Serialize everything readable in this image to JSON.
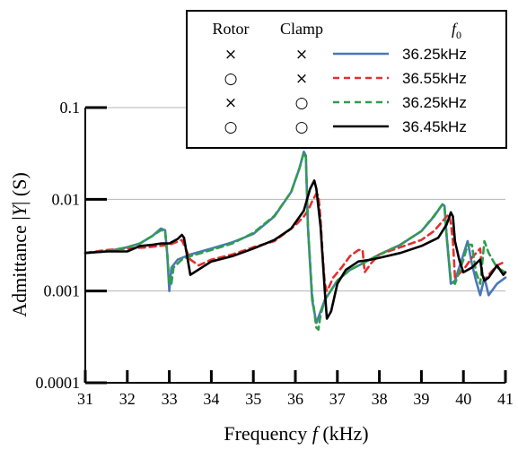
{
  "chart_data": {
    "type": "line",
    "xlabel": "Frequency f (kHz)",
    "xlabel_parts": [
      "Frequency ",
      "f",
      " (kHz)"
    ],
    "ylabel": "Admittance |Y| (S)",
    "ylabel_parts": [
      "Admittance |",
      "Y",
      "| (S)"
    ],
    "xlim": [
      31,
      41
    ],
    "ylim": [
      0.0001,
      0.1
    ],
    "yscale": "log",
    "grid": "horizontal",
    "x_ticks": [
      "31",
      "32",
      "33",
      "34",
      "35",
      "36",
      "37",
      "38",
      "39",
      "40",
      "41"
    ],
    "y_ticks": [
      "0.0001",
      "0.001",
      "0.01",
      "0.1"
    ],
    "legend": {
      "placement": "top-right",
      "headers": {
        "rotor": "Rotor",
        "clamp": "Clamp",
        "f0": "f",
        "f0_sub": "0"
      },
      "rows": [
        {
          "rotor": "×",
          "clamp": "×",
          "f0": "36.25kHz"
        },
        {
          "rotor": "○",
          "clamp": "×",
          "f0": "36.55kHz"
        },
        {
          "rotor": "×",
          "clamp": "○",
          "f0": "36.25kHz"
        },
        {
          "rotor": "○",
          "clamp": "○",
          "f0": "36.45kHz"
        }
      ]
    },
    "series": [
      {
        "color": "#4a78b8",
        "dash": "solid",
        "x": [
          31,
          31.5,
          32,
          32.3,
          32.6,
          32.8,
          32.9,
          32.95,
          33.0,
          33.05,
          33.2,
          33.5,
          34,
          34.5,
          35,
          35.5,
          35.9,
          36.1,
          36.2,
          36.25,
          36.3,
          36.4,
          36.5,
          36.6,
          36.7,
          37,
          37.3,
          37.6,
          38,
          38.5,
          39,
          39.3,
          39.5,
          39.55,
          39.6,
          39.7,
          39.8,
          40,
          40.1,
          40.2,
          40.3,
          40.4,
          40.5,
          40.6,
          40.8,
          41
        ],
        "y": [
          0.0026,
          0.0027,
          0.003,
          0.0033,
          0.004,
          0.0048,
          0.0046,
          0.0025,
          0.001,
          0.0018,
          0.0022,
          0.0025,
          0.0029,
          0.0034,
          0.0042,
          0.0065,
          0.012,
          0.022,
          0.033,
          0.03,
          0.005,
          0.0008,
          0.00045,
          0.0006,
          0.0008,
          0.0013,
          0.0017,
          0.002,
          0.0025,
          0.0032,
          0.0045,
          0.0065,
          0.0088,
          0.0085,
          0.004,
          0.0012,
          0.0013,
          0.0025,
          0.0035,
          0.002,
          0.0013,
          0.0009,
          0.0014,
          0.0009,
          0.0012,
          0.0014
        ]
      },
      {
        "color": "#e03030",
        "dash": "7,5",
        "x": [
          31,
          31.5,
          32,
          32.5,
          33.0,
          33.3,
          33.5,
          33.7,
          34,
          34.5,
          35,
          35.5,
          36,
          36.2,
          36.3,
          36.4,
          36.5,
          36.55,
          36.6,
          36.65,
          36.7,
          36.75,
          36.8,
          36.9,
          37.1,
          37.3,
          37.5,
          37.6,
          37.65,
          37.8,
          38,
          38.5,
          39,
          39.3,
          39.6,
          39.65,
          39.7,
          39.75,
          39.8,
          40,
          40.2,
          40.4,
          40.45,
          40.5,
          40.6,
          40.8,
          41
        ],
        "y": [
          0.0026,
          0.0028,
          0.0029,
          0.003,
          0.0032,
          0.0036,
          0.0022,
          0.0019,
          0.0022,
          0.0025,
          0.003,
          0.0035,
          0.0052,
          0.0065,
          0.0075,
          0.0095,
          0.0115,
          0.011,
          0.006,
          0.0025,
          0.0012,
          0.001,
          0.0011,
          0.0014,
          0.0018,
          0.0024,
          0.0028,
          0.0028,
          0.0016,
          0.002,
          0.0025,
          0.003,
          0.0036,
          0.0045,
          0.0065,
          0.0068,
          0.0055,
          0.0035,
          0.0014,
          0.0017,
          0.0023,
          0.0029,
          0.0015,
          0.0013,
          0.0015,
          0.0019,
          0.0021
        ]
      },
      {
        "color": "#2f9e4b",
        "dash": "7,5",
        "x": [
          31,
          31.5,
          32,
          32.3,
          32.6,
          32.8,
          32.9,
          32.95,
          33.0,
          33.05,
          33.1,
          33.3,
          33.5,
          34,
          34.5,
          35,
          35.5,
          35.9,
          36.1,
          36.2,
          36.25,
          36.3,
          36.4,
          36.5,
          36.55,
          36.6,
          36.7,
          37,
          37.3,
          37.6,
          38,
          38.5,
          39,
          39.3,
          39.5,
          39.55,
          39.6,
          39.7,
          39.8,
          40,
          40.1,
          40.2,
          40.3,
          40.4,
          40.5,
          40.6,
          40.8,
          41
        ],
        "y": [
          0.0026,
          0.0027,
          0.003,
          0.0033,
          0.004,
          0.0046,
          0.0045,
          0.0026,
          0.0012,
          0.0012,
          0.0018,
          0.0022,
          0.0024,
          0.0028,
          0.0033,
          0.0043,
          0.0066,
          0.012,
          0.022,
          0.032,
          0.029,
          0.005,
          0.0009,
          0.0004,
          0.00038,
          0.00055,
          0.0008,
          0.0013,
          0.0017,
          0.002,
          0.0025,
          0.0032,
          0.0045,
          0.0066,
          0.0088,
          0.0084,
          0.004,
          0.0013,
          0.0012,
          0.0022,
          0.0032,
          0.0032,
          0.0016,
          0.0012,
          0.0035,
          0.0026,
          0.0018,
          0.0016
        ]
      },
      {
        "color": "#000000",
        "dash": "solid",
        "x": [
          31,
          31.5,
          32,
          32.3,
          32.6,
          32.8,
          33.0,
          33.2,
          33.3,
          33.35,
          33.5,
          34,
          34.5,
          35,
          35.5,
          35.9,
          36.2,
          36.35,
          36.45,
          36.5,
          36.6,
          36.7,
          36.75,
          36.85,
          37,
          37.2,
          37.5,
          37.8,
          38,
          38.5,
          39,
          39.4,
          39.6,
          39.7,
          39.75,
          39.8,
          39.9,
          40,
          40.2,
          40.4,
          40.45,
          40.5,
          40.6,
          40.8,
          40.95,
          41
        ],
        "y": [
          0.0026,
          0.0027,
          0.0027,
          0.0031,
          0.0032,
          0.0033,
          0.0033,
          0.0037,
          0.0041,
          0.0038,
          0.0015,
          0.0021,
          0.0024,
          0.0029,
          0.0036,
          0.0048,
          0.0075,
          0.013,
          0.016,
          0.013,
          0.005,
          0.001,
          0.0005,
          0.0006,
          0.0012,
          0.0017,
          0.0021,
          0.0022,
          0.0023,
          0.0026,
          0.0031,
          0.0038,
          0.0053,
          0.0072,
          0.0065,
          0.0035,
          0.0022,
          0.0016,
          0.0018,
          0.0022,
          0.0015,
          0.0013,
          0.0014,
          0.0019,
          0.0015,
          0.0016
        ]
      }
    ]
  }
}
